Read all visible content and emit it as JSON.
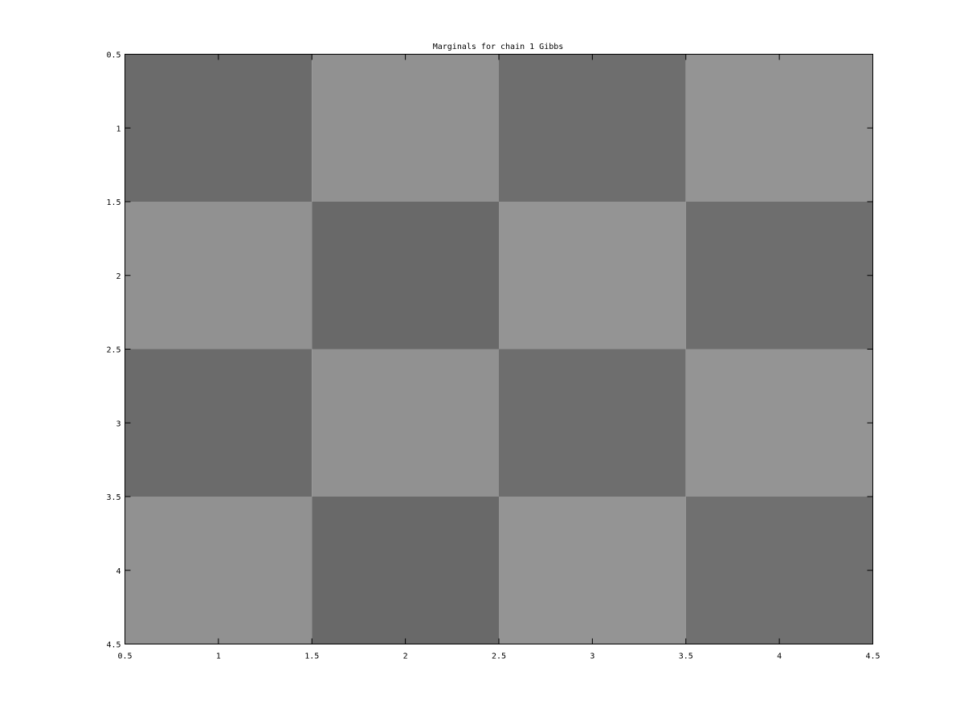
{
  "chart_data": {
    "type": "heatmap",
    "title": "Marginals for chain 1 Gibbs",
    "xlabel": "",
    "ylabel": "",
    "x_categories": [
      1,
      2,
      3,
      4
    ],
    "y_categories": [
      1,
      2,
      3,
      4
    ],
    "xlim": [
      0.5,
      4.5
    ],
    "ylim": [
      0.5,
      4.5
    ],
    "y_direction": "reversed",
    "x_ticks": [
      "0.5",
      "1",
      "1.5",
      "2",
      "2.5",
      "3",
      "3.5",
      "4",
      "4.5"
    ],
    "y_ticks": [
      "0.5",
      "1",
      "1.5",
      "2",
      "2.5",
      "3",
      "3.5",
      "4",
      "4.5"
    ],
    "colormap": "gray",
    "values": [
      [
        0.42,
        0.57,
        0.43,
        0.58
      ],
      [
        0.57,
        0.41,
        0.58,
        0.43
      ],
      [
        0.42,
        0.57,
        0.43,
        0.58
      ],
      [
        0.57,
        0.41,
        0.58,
        0.44
      ]
    ],
    "grid": false,
    "legend": "none"
  },
  "colors": {
    "background": "#ffffff",
    "axis": "#000000"
  }
}
